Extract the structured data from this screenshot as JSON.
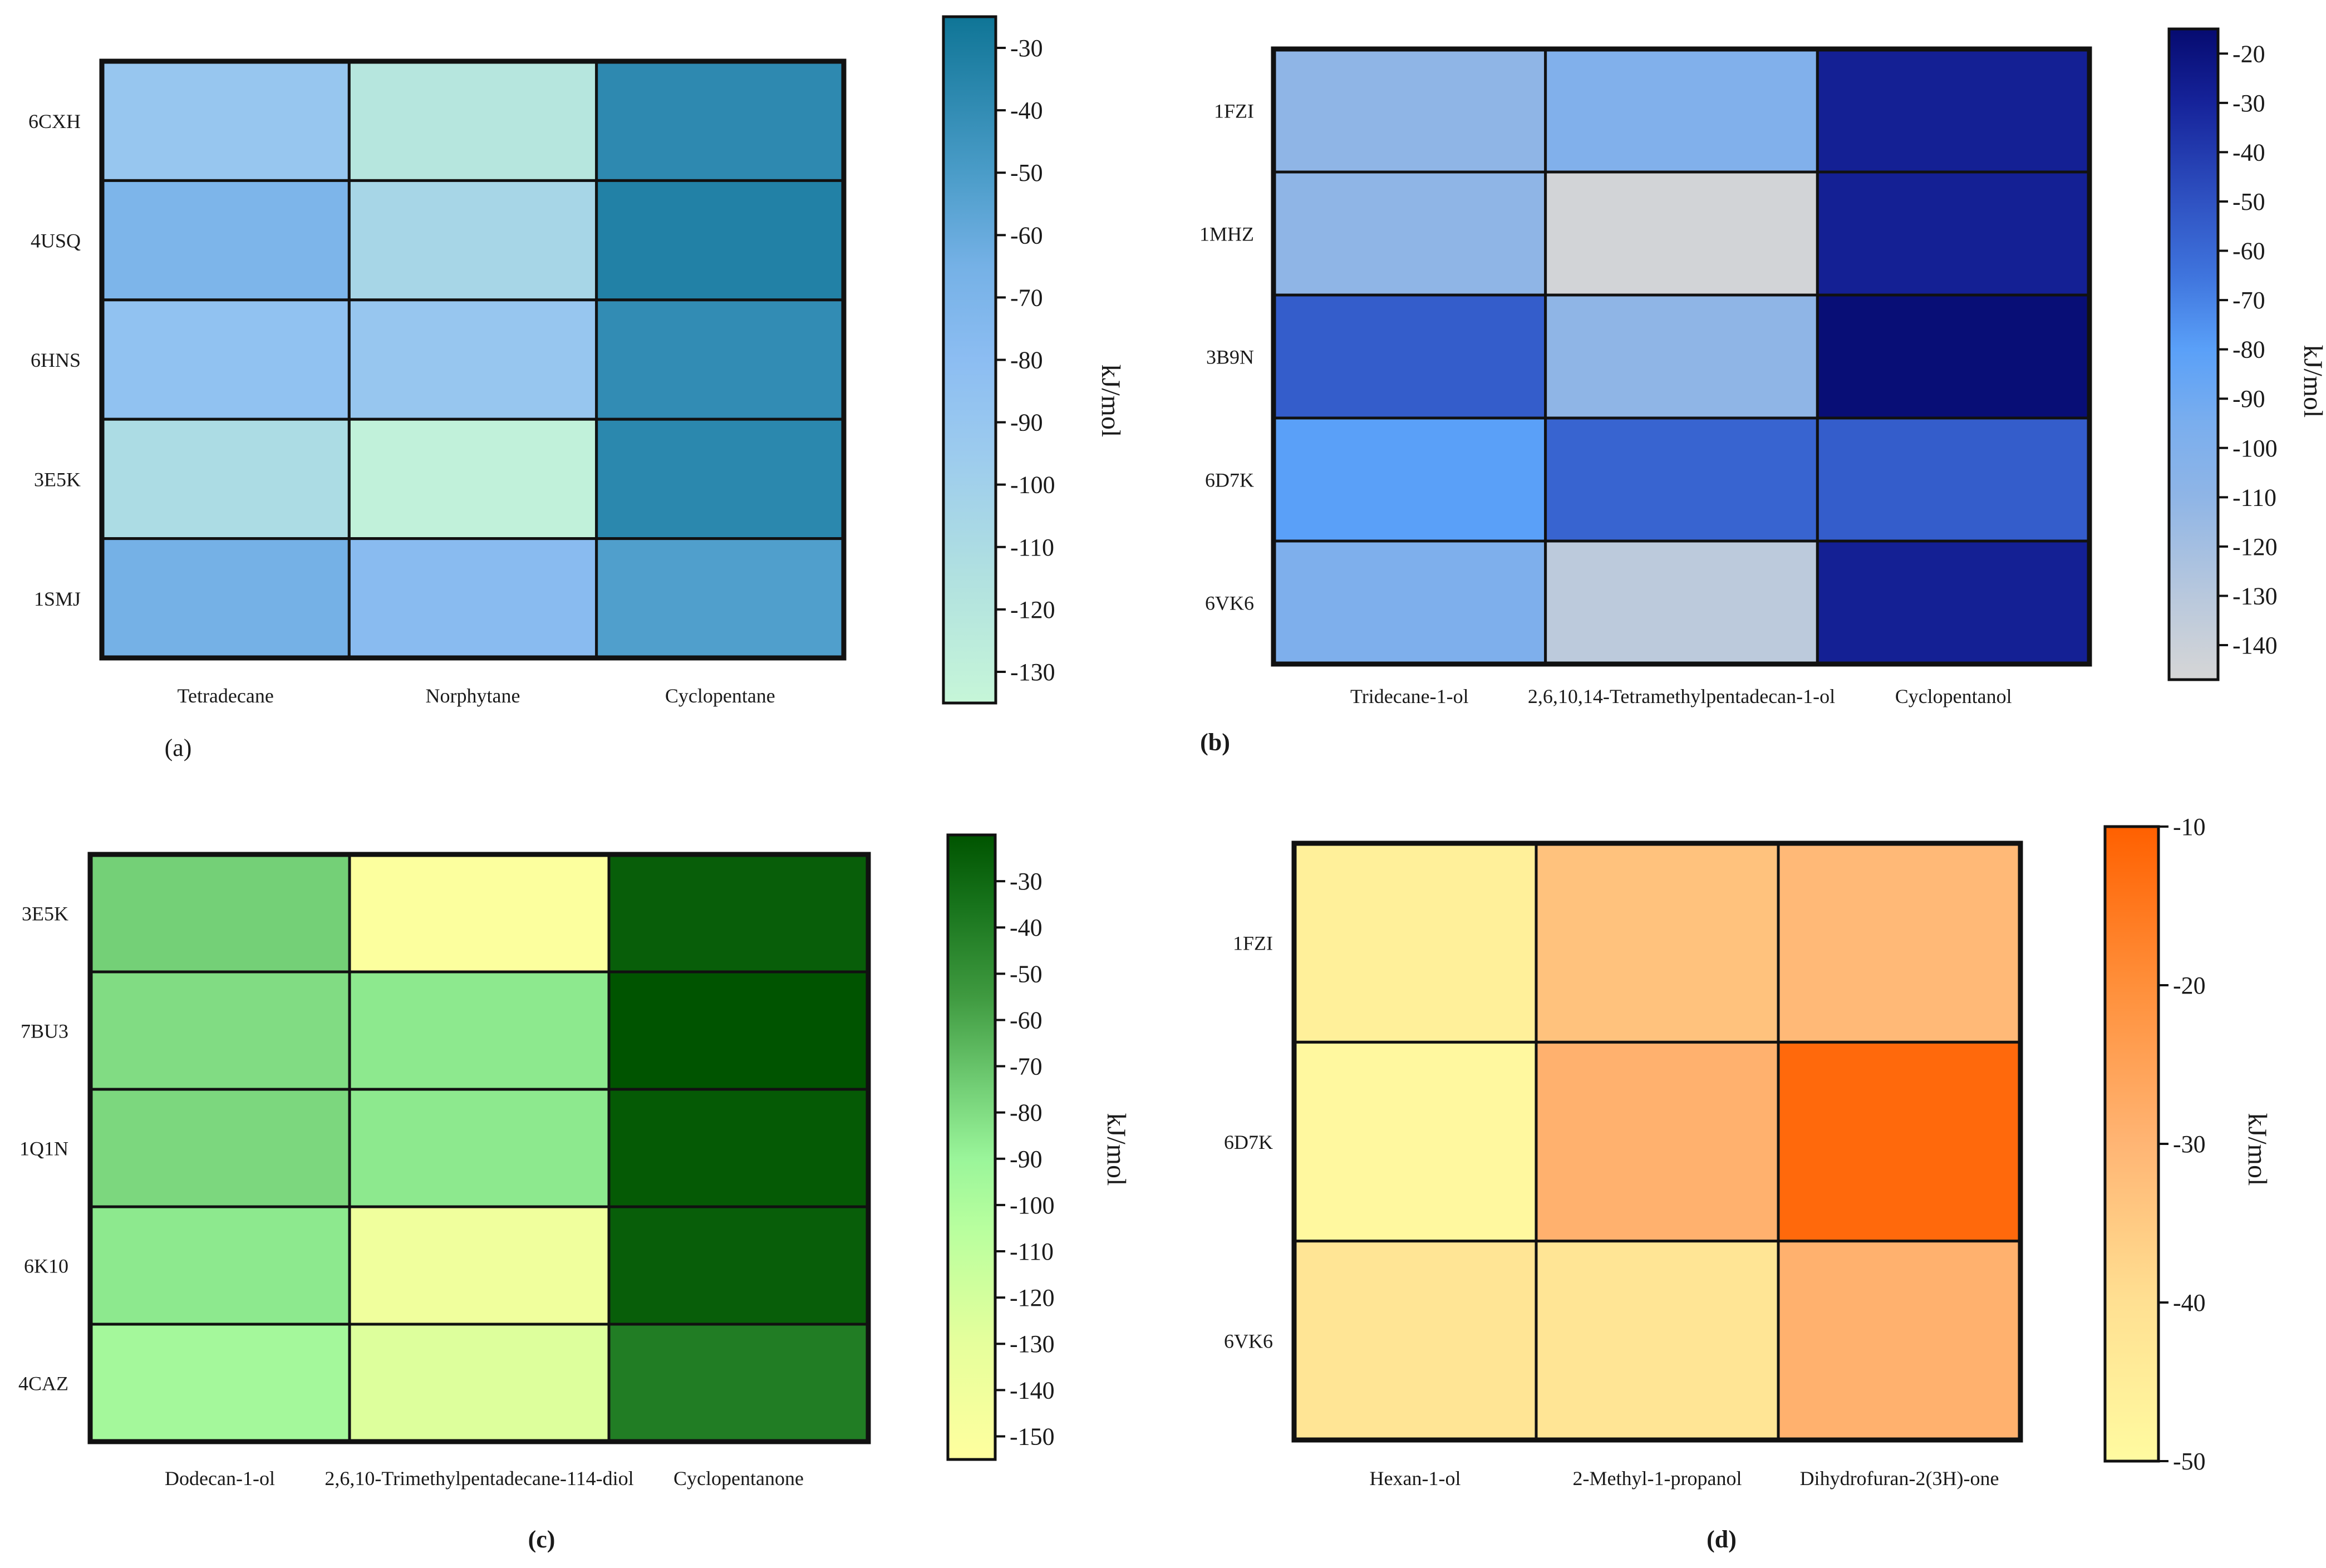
{
  "chart_data": [
    {
      "id": "a",
      "type": "heatmap",
      "panel_label": "(a)",
      "panel_label_bold": false,
      "rows": [
        "6CXH",
        "4USQ",
        "6HNS",
        "3E5K",
        "1SMJ"
      ],
      "columns": [
        "Tetradecane",
        "Norphytane",
        "Cyclopentane"
      ],
      "values": [
        [
          -90,
          -120,
          -38
        ],
        [
          -70,
          -105,
          -33
        ],
        [
          -85,
          -90,
          -40
        ],
        [
          -110,
          -130,
          -37
        ],
        [
          -65,
          -78,
          -52
        ]
      ],
      "colorbar": {
        "unit": "kJ/mol",
        "range": [
          -135,
          -25
        ],
        "ticks": [
          -30,
          -40,
          -50,
          -60,
          -70,
          -80,
          -90,
          -100,
          -110,
          -120,
          -130
        ],
        "stops": [
          {
            "v": -135,
            "c": "#c6f6d8"
          },
          {
            "v": -115,
            "c": "#b1e1e0"
          },
          {
            "v": -95,
            "c": "#9ccbee"
          },
          {
            "v": -80,
            "c": "#8cbdf2"
          },
          {
            "v": -65,
            "c": "#75b1e6"
          },
          {
            "v": -50,
            "c": "#4a9cc8"
          },
          {
            "v": -25,
            "c": "#0f7596"
          }
        ]
      }
    },
    {
      "id": "b",
      "type": "heatmap",
      "panel_label": "(b)",
      "panel_label_bold": true,
      "rows": [
        "1FZI",
        "1MHZ",
        "3B9N",
        "6D7K",
        "6VK6"
      ],
      "columns": [
        "Tridecane-1-ol",
        "2,6,10,14-Tetramethylpentadecan-1-ol",
        "Cyclopentanol"
      ],
      "values": [
        [
          -110,
          -100,
          -28
        ],
        [
          -110,
          -145,
          -28
        ],
        [
          -55,
          -110,
          -17
        ],
        [
          -80,
          -58,
          -55
        ],
        [
          -98,
          -132,
          -28
        ]
      ],
      "colorbar": {
        "unit": "kJ/mol",
        "range": [
          -147,
          -15
        ],
        "ticks": [
          -20,
          -30,
          -40,
          -50,
          -60,
          -70,
          -80,
          -90,
          -100,
          -110,
          -120,
          -130,
          -140
        ],
        "stops": [
          {
            "v": -147,
            "c": "#d6d6d6"
          },
          {
            "v": -130,
            "c": "#b8c8dd"
          },
          {
            "v": -110,
            "c": "#8fb5e6"
          },
          {
            "v": -95,
            "c": "#7aaeee"
          },
          {
            "v": -80,
            "c": "#5aa0f8"
          },
          {
            "v": -65,
            "c": "#3f74dd"
          },
          {
            "v": -50,
            "c": "#2f52c2"
          },
          {
            "v": -30,
            "c": "#16239a"
          },
          {
            "v": -15,
            "c": "#060b70"
          }
        ]
      }
    },
    {
      "id": "c",
      "type": "heatmap",
      "panel_label": "(c)",
      "panel_label_bold": true,
      "rows": [
        "3E5K",
        "7BU3",
        "1Q1N",
        "6K10",
        "4CAZ"
      ],
      "columns": [
        "Dodecan-1-ol",
        "2,6,10-Trimethylpentadecane-114-diol",
        "Cyclopentanone"
      ],
      "values": [
        [
          -75,
          -152,
          -25
        ],
        [
          -80,
          -85,
          -20
        ],
        [
          -78,
          -85,
          -23
        ],
        [
          -85,
          -140,
          -25
        ],
        [
          -95,
          -125,
          -40
        ]
      ],
      "colorbar": {
        "unit": "kJ/mol",
        "range": [
          -155,
          -20
        ],
        "ticks": [
          -30,
          -40,
          -50,
          -60,
          -70,
          -80,
          -90,
          -100,
          -110,
          -120,
          -130,
          -140,
          -150
        ],
        "stops": [
          {
            "v": -155,
            "c": "#ffff9e"
          },
          {
            "v": -130,
            "c": "#e6ff9c"
          },
          {
            "v": -105,
            "c": "#b8ff9e"
          },
          {
            "v": -90,
            "c": "#9af59a"
          },
          {
            "v": -75,
            "c": "#74d077"
          },
          {
            "v": -55,
            "c": "#3f9a40"
          },
          {
            "v": -35,
            "c": "#17731b"
          },
          {
            "v": -20,
            "c": "#005400"
          }
        ]
      }
    },
    {
      "id": "d",
      "type": "heatmap",
      "panel_label": "(d)",
      "panel_label_bold": true,
      "rows": [
        "1FZI",
        "6D7K",
        "6VK6"
      ],
      "columns": [
        "Hexan-1-ol",
        "2-Methyl-1-propanol",
        "Dihydrofuran-2(3H)-one"
      ],
      "values": [
        [
          -46,
          -33,
          -31
        ],
        [
          -49,
          -29,
          -12
        ],
        [
          -42,
          -42,
          -29
        ]
      ],
      "colorbar": {
        "unit": "kJ/mol",
        "range": [
          -50,
          -10
        ],
        "ticks": [
          -10,
          -20,
          -30,
          -40,
          -50
        ],
        "stops": [
          {
            "v": -50,
            "c": "#fffba0"
          },
          {
            "v": -40,
            "c": "#ffe092"
          },
          {
            "v": -30,
            "c": "#ffb574"
          },
          {
            "v": -20,
            "c": "#ff8f3a"
          },
          {
            "v": -10,
            "c": "#ff6000"
          }
        ]
      }
    }
  ]
}
